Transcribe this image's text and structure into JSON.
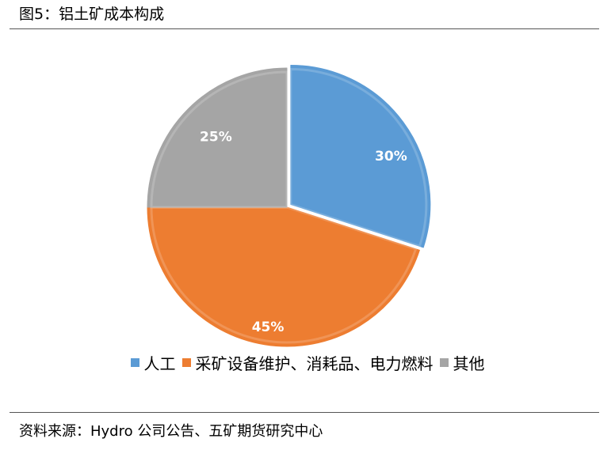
{
  "header": {
    "title": "图5：铝土矿成本构成"
  },
  "chart_data": {
    "type": "pie",
    "slices": [
      {
        "name": "人工",
        "value": 30,
        "label": "30%",
        "color": "#5B9BD5"
      },
      {
        "name": "采矿设备维护、消耗品、电力燃料",
        "value": 45,
        "label": "45%",
        "color": "#ED7D31"
      },
      {
        "name": "其他",
        "value": 25,
        "label": "25%",
        "color": "#A5A5A5"
      }
    ],
    "legend_position": "bottom"
  },
  "footer": {
    "source": "资料来源：Hydro 公司公告、五矿期货研究中心"
  }
}
